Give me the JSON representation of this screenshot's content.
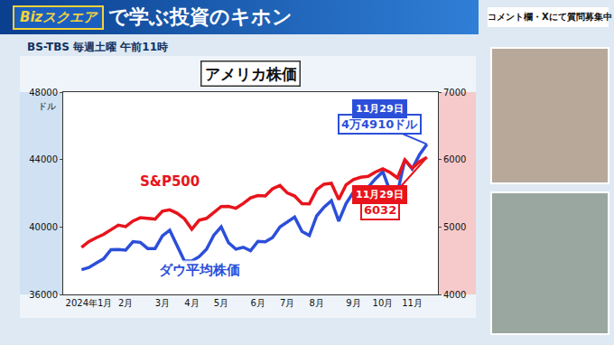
{
  "header": {
    "logo": "Bizスクエア",
    "title": "で学ぶ投資のキホン",
    "channel": "BS-TBS 毎週土曜 午前11時",
    "notice": "コメント欄・Xにて質問募集中"
  },
  "chart_data": {
    "type": "line",
    "title": "アメリカ株価",
    "ylabel": "ドル",
    "categories": [
      null,
      "2024年1月",
      null,
      null,
      null,
      null,
      "2月",
      null,
      null,
      null,
      null,
      "3月",
      null,
      null,
      null,
      "4月",
      null,
      null,
      null,
      "5月",
      null,
      null,
      null,
      null,
      "6月",
      null,
      null,
      null,
      "7月",
      null,
      null,
      null,
      "8月",
      null,
      null,
      null,
      null,
      "9月",
      null,
      null,
      null,
      "10月",
      null,
      null,
      null,
      "11月",
      null,
      null
    ],
    "series": [
      {
        "name": "ダウ平均株価",
        "color": "#2c4fd9",
        "values": [
          37466,
          37593,
          37864,
          38109,
          38654,
          38671,
          38628,
          39131,
          39087,
          38723,
          38714,
          39475,
          39807,
          38904,
          37983,
          37986,
          38239,
          38676,
          39512,
          40004,
          39070,
          38686,
          38799,
          38589,
          39150,
          39119,
          39376,
          40001,
          40288,
          40589,
          39737,
          39497,
          40660,
          41175,
          41563,
          40345,
          41394,
          42063,
          42313,
          42353,
          42864,
          43275,
          42114,
          42052,
          43989,
          43445,
          44297,
          44910
        ]
      },
      {
        "name": "S&P500",
        "color": "#e8141c",
        "axis": "y2",
        "values": [
          4697,
          4784,
          4840,
          4891,
          4959,
          5027,
          5006,
          5089,
          5137,
          5124,
          5117,
          5234,
          5254,
          5204,
          5123,
          4967,
          5100,
          5128,
          5223,
          5303,
          5305,
          5278,
          5347,
          5432,
          5465,
          5460,
          5567,
          5615,
          5505,
          5459,
          5346,
          5344,
          5554,
          5635,
          5648,
          5408,
          5626,
          5703,
          5738,
          5751,
          5815,
          5864,
          5808,
          5729,
          5996,
          5870,
          5969,
          6032
        ]
      }
    ],
    "ylim": [
      36000,
      48000
    ],
    "yticks": [
      36000,
      40000,
      44000,
      48000
    ],
    "y2lim": [
      4000,
      7000
    ],
    "y2ticks": [
      4000,
      5000,
      6000,
      7000
    ],
    "grid": false,
    "annotations": [
      {
        "series": "ダウ平均株価",
        "date": "11月29日",
        "text": "4万4910ドル"
      },
      {
        "series": "S&P500",
        "date": "11月29日",
        "text": "6032"
      }
    ]
  }
}
